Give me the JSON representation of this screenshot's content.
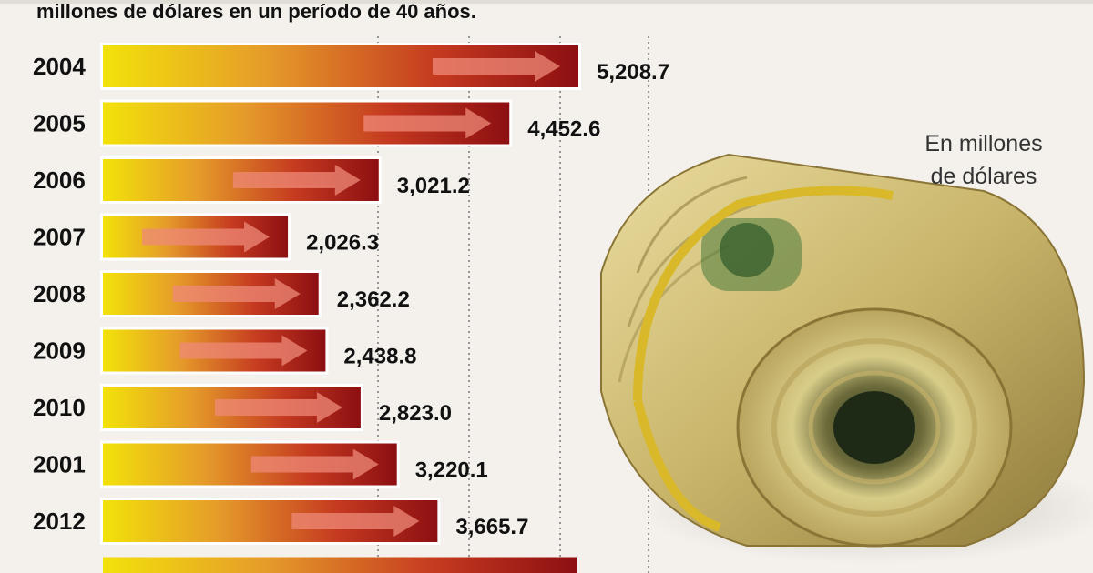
{
  "header": {
    "subtitle": "millones de dólares en un período de 40 años."
  },
  "unit_note": {
    "line1": "En millones",
    "line2": "de dólares"
  },
  "chart_data": {
    "type": "bar",
    "orientation": "horizontal",
    "title": "",
    "xlabel": "",
    "ylabel": "",
    "categories": [
      "2004",
      "2005",
      "2006",
      "2007",
      "2008",
      "2009",
      "2010",
      "2001",
      "2012"
    ],
    "values": [
      5208.7,
      4452.6,
      3021.2,
      2026.3,
      2362.2,
      2438.8,
      2823.0,
      3220.1,
      3665.7
    ],
    "value_labels": [
      "5,208.7",
      "4,452.6",
      "3,021.2",
      "2,026.3",
      "2,362.2",
      "2,438.8",
      "2,823.0",
      "3,220.1",
      "3,665.7"
    ],
    "grid": "vertical dotted",
    "bar_gradient": [
      "#f2e20a",
      "#e0862a",
      "#c4281f",
      "#8d0f12"
    ],
    "value_axis_min": 0
  },
  "image": {
    "icon": "money-roll-icon"
  }
}
